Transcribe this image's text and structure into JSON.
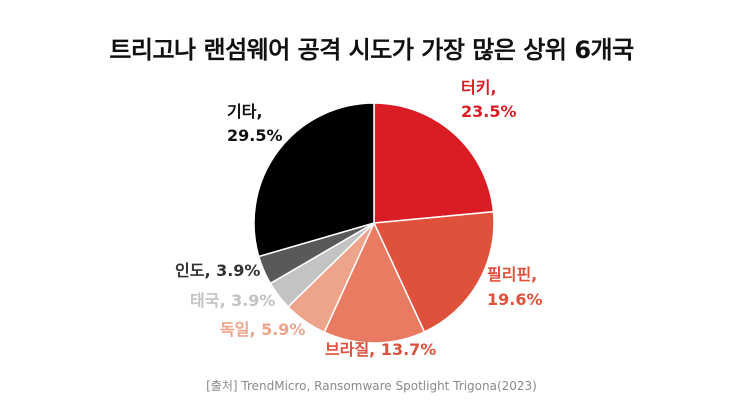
{
  "title": "트리고나 랜섬웨어 공격 시도가 가장 많은 상위 6개국",
  "source": "[출처] TrendMicro, Ransomware Spotlight Trigona(2023)",
  "chart_data": {
    "type": "pie",
    "unit": "%",
    "slices": [
      {
        "label": "터키",
        "value": 23.5,
        "text": "터키,",
        "value_text": "23.5%",
        "color": "#da1c24"
      },
      {
        "label": "필리핀",
        "value": 19.6,
        "text": "필리핀,",
        "value_text": "19.6%",
        "color": "#e0513c"
      },
      {
        "label": "브라질",
        "value": 13.7,
        "text": "브라질, 13.7%",
        "value_text": "",
        "color": "#e87b62"
      },
      {
        "label": "독일",
        "value": 5.9,
        "text": "독일, 5.9%",
        "value_text": "",
        "color": "#eda48b"
      },
      {
        "label": "태국",
        "value": 3.9,
        "text": "태국, 3.9%",
        "value_text": "",
        "color": "#c3c3c3"
      },
      {
        "label": "인도",
        "value": 3.9,
        "text": "인도, 3.9%",
        "value_text": "",
        "color": "#595959"
      },
      {
        "label": "기타",
        "value": 29.5,
        "text": "기타,",
        "value_text": "29.5%",
        "color": "#000000"
      }
    ],
    "label_colors": [
      "#da1c24",
      "#e0513c",
      "#e0513c",
      "#eda48b",
      "#c3c3c3",
      "#333333",
      "#111111"
    ]
  }
}
